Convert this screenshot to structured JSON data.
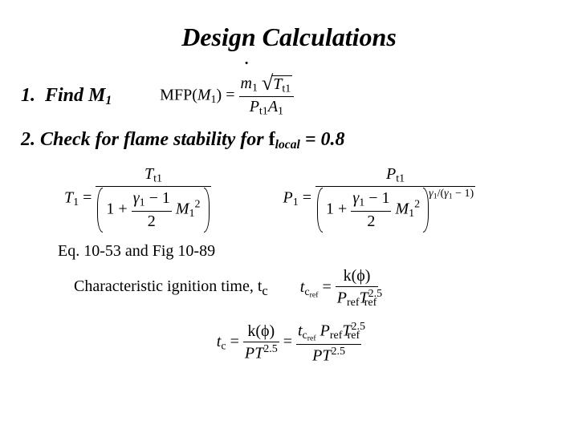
{
  "title": "Design Calculations",
  "step1": {
    "number": "1.",
    "text_pre": "Find M",
    "text_sub": "1"
  },
  "step2": {
    "number": "2.",
    "text": "Check for flame stability for ",
    "phi": "f",
    "phi_sub": "local",
    "eq_tail": " = 0.8"
  },
  "mfp": {
    "lhs_fn": "MFP",
    "lhs_arg": "M",
    "lhs_arg_sub": "1",
    "num_m": "m",
    "num_m_sub": "1",
    "num_T": "T",
    "num_T_sub": "t1",
    "den_P": "P",
    "den_P_sub": "t1",
    "den_A": "A",
    "den_A_sub": "1"
  },
  "T1": {
    "lhs": "T",
    "lhs_sub": "1",
    "num": "T",
    "num_sub": "t1",
    "gamma": "γ",
    "gamma_sub": "1",
    "minus1": " − 1",
    "two": "2",
    "M": "M",
    "M_sub": "1",
    "M_sup": "2",
    "one_plus": "1 + "
  },
  "P1": {
    "lhs": "P",
    "lhs_sub": "1",
    "num": "P",
    "num_sub": "t1",
    "gamma": "γ",
    "gamma_sub": "1",
    "minus1": " − 1",
    "two": "2",
    "M": "M",
    "M_sub": "1",
    "M_sup": "2",
    "one_plus": "1 + ",
    "exp_gamma": "γ",
    "exp_gamma_sub": "1",
    "exp_slash": "/",
    "exp_paren_inner": "γ",
    "exp_paren_inner_sub": "1",
    "exp_m1": " − 1"
  },
  "eqref": "Eq. 10-53 and Fig 10-89",
  "char_text": "Characteristic ignition time, t",
  "char_text_sub": "c",
  "tcref": {
    "lhs": "t",
    "lhs_sub": "c",
    "lhs_sub2": "ref",
    "num_k": "k(ϕ)",
    "den_P": "P",
    "den_P_sub": "ref",
    "den_T": "T",
    "den_T_sub": "ref",
    "den_T_sup": "2.5"
  },
  "tc_final": {
    "lhs": "t",
    "lhs_sub": "c",
    "mid_num": "k(ϕ)",
    "mid_den_PT": "PT",
    "mid_den_sup": "2.5",
    "rhs_num_t": "t",
    "rhs_num_t_sub": "c",
    "rhs_num_t_sub2": "ref",
    "rhs_num_P": "P",
    "rhs_num_P_sub": "ref",
    "rhs_num_T": "T",
    "rhs_num_T_sub": "ref",
    "rhs_num_T_sup": "2.5",
    "rhs_den_PT": "PT",
    "rhs_den_sup": "2.5"
  }
}
